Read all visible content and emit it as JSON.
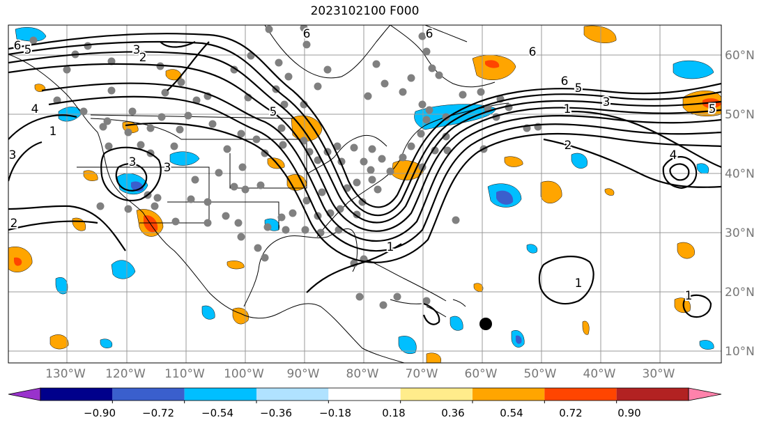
{
  "title": "2023102100 F000",
  "lat_labels": [
    "60°N",
    "50°N",
    "40°N",
    "30°N",
    "20°N",
    "10°N"
  ],
  "lon_labels": [
    "130°W",
    "120°W",
    "110°W",
    "100°W",
    "90°W",
    "80°W",
    "70°W",
    "60°W",
    "50°W",
    "40°W",
    "30°W"
  ],
  "colorbar": {
    "colors": [
      "#9932cc",
      "#00008b",
      "#3a5fcd",
      "#00bfff",
      "#b0e2ff",
      "#ffffff",
      "#ffec8b",
      "#ffa500",
      "#ff4500",
      "#b22222",
      "#ff82ab"
    ],
    "tick_labels": [
      "−0.90",
      "−0.72",
      "−0.54",
      "−0.36",
      "−0.18",
      "0.18",
      "0.36",
      "0.54",
      "0.72",
      "0.90"
    ]
  },
  "contour_labels": [
    "6",
    "5",
    "3",
    "2",
    "6",
    "6",
    "6",
    "5",
    "3",
    "1",
    "2",
    "6",
    "5",
    "4",
    "1",
    "3",
    "3",
    "2",
    "1",
    "1",
    "4",
    "1",
    "3",
    "5"
  ],
  "colors": {
    "land_outline": "#000000",
    "station_dot": "#808080",
    "grid": "#999999",
    "marker": "#000000"
  }
}
